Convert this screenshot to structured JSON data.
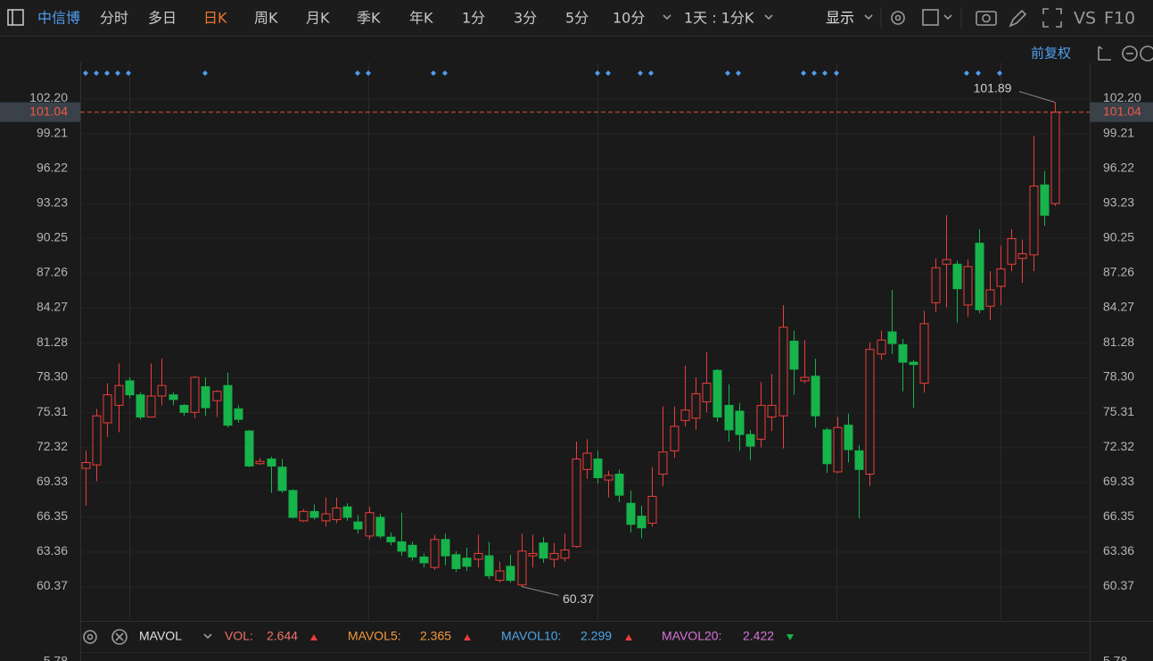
{
  "toolbar": {
    "stock": "中信博",
    "tabs": [
      {
        "label": "分时",
        "active": false
      },
      {
        "label": "多日",
        "active": false
      },
      {
        "label": "日K",
        "active": true
      },
      {
        "label": "周K",
        "active": false
      },
      {
        "label": "月K",
        "active": false
      },
      {
        "label": "季K",
        "active": false
      },
      {
        "label": "年K",
        "active": false
      },
      {
        "label": "1分",
        "active": false
      },
      {
        "label": "3分",
        "active": false
      },
      {
        "label": "5分",
        "active": false
      },
      {
        "label": "10分",
        "active": false
      }
    ],
    "period": "1天 : 1分K",
    "display": "显示",
    "vs": "VS",
    "f10": "F10",
    "adjust": "前复权"
  },
  "chart_data": {
    "type": "candlestick",
    "open": [
      70.5,
      70.8,
      74.4,
      75.9,
      78.0,
      76.8,
      74.9,
      76.7,
      76.8,
      75.9,
      75.3,
      77.5,
      76.3,
      77.6,
      75.6,
      73.7,
      70.9,
      71.3,
      70.6,
      68.6,
      66.0,
      66.8,
      66.0,
      66.1,
      67.2,
      65.9,
      64.7,
      66.3,
      64.6,
      64.2,
      63.9,
      62.9,
      62.0,
      64.4,
      63.1,
      62.8,
      62.7,
      63.0,
      60.9,
      62.1,
      60.5,
      63.0,
      64.1,
      62.7,
      62.8,
      63.8,
      70.4,
      71.3,
      69.5,
      70.0,
      67.5,
      66.4,
      65.8,
      70.0,
      72.0,
      74.6,
      74.8,
      76.2,
      78.9,
      75.9,
      75.4,
      73.4,
      73.0,
      74.9,
      75.0,
      81.4,
      78.0,
      78.4,
      73.8,
      70.2,
      74.2,
      72.0,
      70.0,
      80.3,
      82.2,
      81.1,
      79.6,
      77.8,
      84.7,
      88.0,
      88.0,
      84.5,
      89.8,
      84.4,
      86.1,
      88.0,
      88.5,
      88.8,
      94.8,
      93.2
    ],
    "high": [
      72.0,
      75.6,
      77.8,
      79.5,
      78.3,
      77.0,
      79.5,
      79.9,
      77.0,
      76.0,
      78.4,
      78.3,
      77.2,
      78.7,
      75.9,
      73.8,
      71.4,
      71.5,
      71.3,
      68.7,
      67.0,
      67.4,
      68.0,
      68.0,
      67.5,
      66.5,
      67.2,
      66.6,
      65.0,
      66.7,
      64.2,
      63.2,
      64.8,
      64.9,
      63.4,
      63.7,
      64.8,
      64.2,
      62.5,
      63.1,
      64.9,
      64.8,
      64.6,
      64.1,
      64.9,
      72.8,
      73.0,
      72.0,
      70.3,
      70.4,
      68.6,
      67.3,
      70.6,
      75.8,
      75.8,
      79.3,
      78.3,
      80.5,
      79.0,
      77.7,
      76.1,
      73.8,
      77.9,
      78.6,
      84.5,
      82.3,
      81.5,
      79.9,
      74.0,
      74.9,
      75.2,
      72.5,
      81.3,
      82.3,
      85.8,
      81.6,
      79.8,
      84.0,
      88.5,
      92.2,
      88.3,
      88.4,
      91.0,
      87.4,
      89.6,
      91.0,
      90.1,
      99.0,
      96.0,
      101.89
    ],
    "low": [
      67.3,
      69.4,
      73.2,
      73.6,
      76.5,
      74.7,
      74.9,
      75.9,
      75.9,
      75.0,
      74.8,
      75.0,
      74.9,
      74.0,
      74.4,
      70.6,
      70.8,
      68.4,
      68.4,
      66.2,
      65.9,
      66.1,
      65.5,
      65.8,
      66.0,
      64.9,
      64.4,
      64.5,
      63.9,
      63.0,
      62.6,
      62.0,
      61.8,
      62.2,
      61.6,
      61.7,
      62.0,
      61.0,
      60.7,
      60.7,
      60.37,
      62.0,
      62.4,
      62.0,
      62.5,
      63.7,
      69.6,
      69.2,
      68.0,
      67.6,
      65.0,
      64.5,
      65.5,
      69.0,
      71.4,
      74.1,
      73.8,
      75.3,
      74.5,
      72.8,
      72.0,
      71.2,
      72.3,
      73.7,
      72.2,
      76.8,
      77.8,
      74.0,
      70.1,
      70.1,
      71.0,
      66.2,
      69.0,
      79.8,
      80.3,
      77.1,
      75.7,
      77.0,
      83.9,
      84.3,
      83.0,
      83.5,
      83.8,
      83.2,
      84.5,
      87.4,
      86.4,
      87.4,
      91.3,
      93.0
    ],
    "close": [
      71.0,
      75.0,
      76.8,
      77.6,
      76.8,
      74.9,
      76.7,
      77.6,
      76.4,
      75.3,
      78.3,
      75.7,
      77.1,
      74.2,
      74.7,
      70.7,
      71.1,
      70.7,
      68.6,
      66.3,
      66.8,
      66.3,
      66.6,
      67.1,
      66.3,
      65.3,
      66.7,
      64.7,
      64.2,
      63.4,
      62.9,
      62.4,
      64.4,
      63.0,
      61.9,
      62.1,
      63.2,
      61.3,
      61.7,
      60.9,
      63.4,
      63.2,
      62.8,
      63.2,
      63.5,
      71.3,
      71.8,
      69.7,
      69.9,
      68.2,
      65.7,
      65.4,
      68.1,
      71.9,
      74.1,
      75.5,
      76.9,
      77.8,
      74.9,
      73.8,
      73.4,
      72.4,
      75.9,
      75.9,
      82.6,
      79.0,
      78.3,
      75.0,
      70.9,
      74.0,
      72.1,
      70.4,
      80.7,
      81.5,
      81.2,
      79.6,
      79.4,
      82.9,
      87.7,
      88.4,
      85.9,
      87.8,
      84.1,
      85.8,
      87.6,
      90.2,
      88.9,
      94.7,
      92.2,
      101.04
    ],
    "up_color": "#ec3e3a",
    "down_color": "#17b34b",
    "ylim": [
      57.5,
      105.3
    ],
    "yticks": [
      {
        "value": 102.2,
        "label": "102.20"
      },
      99.21,
      96.22,
      93.23,
      90.25,
      87.26,
      84.27,
      81.28,
      {
        "value": 78.3,
        "label": "78.30"
      },
      75.31,
      72.32,
      69.33,
      66.35,
      63.36,
      60.37
    ],
    "grid": true,
    "last_price": 101.04,
    "annotations": {
      "high": 101.89,
      "low": 60.37
    },
    "volume_top_label": 5.78
  },
  "volume_legend": {
    "indicator": "MAVOL",
    "items": [
      {
        "name": "VOL:",
        "value": "2.644",
        "trend": "up",
        "color": "#f07268"
      },
      {
        "name": "MAVOL5:",
        "value": "2.365",
        "trend": "up",
        "color": "#f39a3c"
      },
      {
        "name": "MAVOL10:",
        "value": "2.299",
        "trend": "up",
        "color": "#4ea6ea"
      },
      {
        "name": "MAVOL20:",
        "value": "2.422",
        "trend": "down",
        "color": "#d874d8"
      }
    ]
  }
}
